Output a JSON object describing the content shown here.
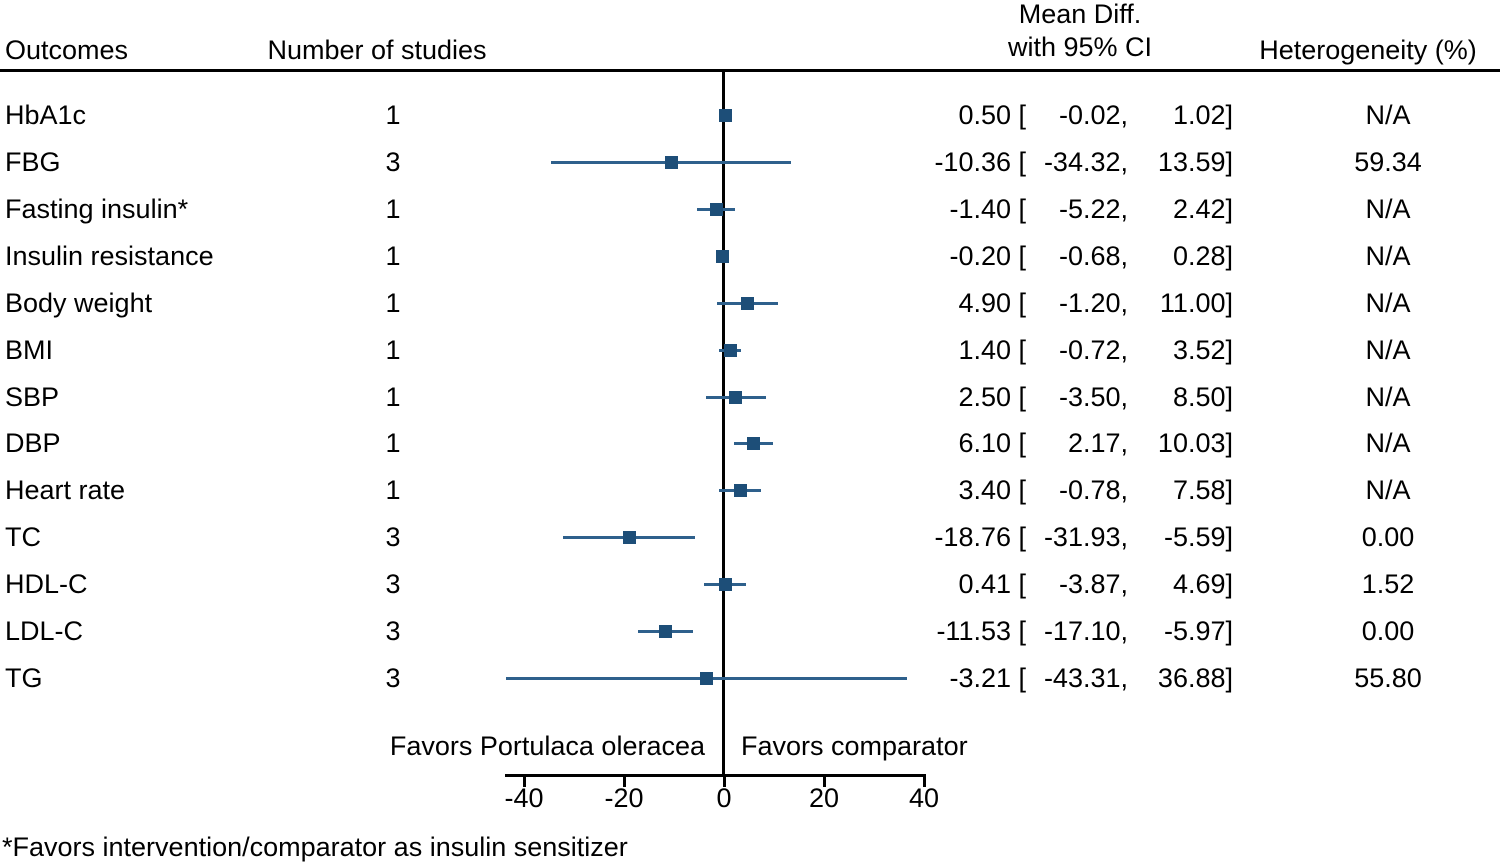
{
  "header": {
    "outcomes": "Outcomes",
    "studies": "Number of studies",
    "mean_diff_line1": "Mean Diff.",
    "mean_diff_line2": "with 95% CI",
    "heterogeneity": "Heterogeneity (%)"
  },
  "footer": {
    "favors_left": "Favors Portulaca oleracea",
    "favors_right": "Favors comparator",
    "footnote": "*Favors intervention/comparator as insulin sensitizer"
  },
  "colors": {
    "ci_line": "#2e608c",
    "marker": "#1d4e78",
    "axis": "#000000"
  },
  "chart_data": {
    "type": "forest",
    "title": "",
    "xlabel": "",
    "x_ticks": [
      -40,
      -20,
      0,
      20,
      40
    ],
    "xlim": [
      -43.6,
      40
    ],
    "grid": false,
    "rows": [
      {
        "outcome": "HbA1c",
        "n_studies": "1",
        "mean": 0.5,
        "ci_low": -0.02,
        "ci_high": 1.02,
        "heterogeneity": "N/A"
      },
      {
        "outcome": "FBG",
        "n_studies": "3",
        "mean": -10.36,
        "ci_low": -34.32,
        "ci_high": 13.59,
        "heterogeneity": "59.34"
      },
      {
        "outcome": "Fasting insulin*",
        "n_studies": "1",
        "mean": -1.4,
        "ci_low": -5.22,
        "ci_high": 2.42,
        "heterogeneity": "N/A"
      },
      {
        "outcome": "Insulin resistance",
        "n_studies": "1",
        "mean": -0.2,
        "ci_low": -0.68,
        "ci_high": 0.28,
        "heterogeneity": "N/A"
      },
      {
        "outcome": "Body weight",
        "n_studies": "1",
        "mean": 4.9,
        "ci_low": -1.2,
        "ci_high": 11.0,
        "heterogeneity": "N/A"
      },
      {
        "outcome": "BMI",
        "n_studies": "1",
        "mean": 1.4,
        "ci_low": -0.72,
        "ci_high": 3.52,
        "heterogeneity": "N/A"
      },
      {
        "outcome": "SBP",
        "n_studies": "1",
        "mean": 2.5,
        "ci_low": -3.5,
        "ci_high": 8.5,
        "heterogeneity": "N/A"
      },
      {
        "outcome": "DBP",
        "n_studies": "1",
        "mean": 6.1,
        "ci_low": 2.17,
        "ci_high": 10.03,
        "heterogeneity": "N/A"
      },
      {
        "outcome": "Heart rate",
        "n_studies": "1",
        "mean": 3.4,
        "ci_low": -0.78,
        "ci_high": 7.58,
        "heterogeneity": "N/A"
      },
      {
        "outcome": "TC",
        "n_studies": "3",
        "mean": -18.76,
        "ci_low": -31.93,
        "ci_high": -5.59,
        "heterogeneity": "0.00"
      },
      {
        "outcome": "HDL-C",
        "n_studies": "3",
        "mean": 0.41,
        "ci_low": -3.87,
        "ci_high": 4.69,
        "heterogeneity": "1.52"
      },
      {
        "outcome": "LDL-C",
        "n_studies": "3",
        "mean": -11.53,
        "ci_low": -17.1,
        "ci_high": -5.97,
        "heterogeneity": "0.00"
      },
      {
        "outcome": "TG",
        "n_studies": "3",
        "mean": -3.21,
        "ci_low": -43.31,
        "ci_high": 36.88,
        "heterogeneity": "55.80"
      }
    ]
  }
}
